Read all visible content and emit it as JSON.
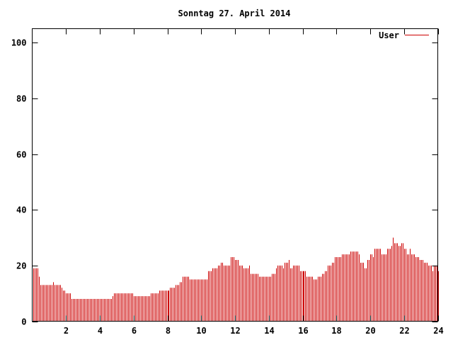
{
  "chart_data": {
    "type": "bar",
    "title": "Sonntag 27. April 2014",
    "xlabel": "",
    "ylabel": "",
    "xlim": [
      0,
      24
    ],
    "ylim": [
      0,
      105
    ],
    "x_ticks": [
      2,
      4,
      6,
      8,
      10,
      12,
      14,
      16,
      18,
      20,
      22,
      24
    ],
    "x_tick_labels": [
      "2",
      "4",
      "6",
      "8",
      "10",
      "12",
      "14",
      "16",
      "18",
      "20",
      "22",
      "24"
    ],
    "y_ticks": [
      0,
      20,
      40,
      60,
      80,
      100
    ],
    "y_tick_labels": [
      "0",
      "20",
      "40",
      "60",
      "80",
      "100"
    ],
    "grid": false,
    "legend_position": "top-right",
    "colors": {
      "series": "#cc0000",
      "axis": "#000000",
      "background": "#ffffff"
    },
    "series": [
      {
        "name": "User",
        "anchors": [
          [
            0.05,
            19
          ],
          [
            0.3,
            19
          ],
          [
            0.4,
            16
          ],
          [
            0.5,
            13
          ],
          [
            1.0,
            13
          ],
          [
            1.2,
            14
          ],
          [
            1.3,
            13
          ],
          [
            1.5,
            13
          ],
          [
            1.7,
            12
          ],
          [
            1.8,
            11
          ],
          [
            2.0,
            10
          ],
          [
            2.2,
            10
          ],
          [
            2.3,
            8
          ],
          [
            4.0,
            8
          ],
          [
            4.2,
            8
          ],
          [
            4.5,
            8
          ],
          [
            4.7,
            9
          ],
          [
            4.8,
            10
          ],
          [
            5.8,
            10
          ],
          [
            6.0,
            9
          ],
          [
            6.9,
            9
          ],
          [
            7.0,
            10
          ],
          [
            7.4,
            10
          ],
          [
            7.5,
            11
          ],
          [
            8.0,
            11
          ],
          [
            8.1,
            12
          ],
          [
            8.4,
            12
          ],
          [
            8.5,
            13
          ],
          [
            8.7,
            14
          ],
          [
            8.9,
            16
          ],
          [
            9.2,
            16
          ],
          [
            9.3,
            15
          ],
          [
            10.3,
            15
          ],
          [
            10.4,
            18
          ],
          [
            10.6,
            19
          ],
          [
            11.0,
            20
          ],
          [
            11.1,
            21
          ],
          [
            11.3,
            20
          ],
          [
            11.6,
            20
          ],
          [
            11.7,
            23
          ],
          [
            11.9,
            23
          ],
          [
            12.0,
            22
          ],
          [
            12.2,
            20
          ],
          [
            12.4,
            20
          ],
          [
            12.5,
            19
          ],
          [
            12.7,
            19
          ],
          [
            12.8,
            20
          ],
          [
            12.9,
            17
          ],
          [
            13.3,
            17
          ],
          [
            13.4,
            16
          ],
          [
            14.0,
            16
          ],
          [
            14.1,
            17
          ],
          [
            14.3,
            17
          ],
          [
            14.4,
            19
          ],
          [
            14.5,
            20
          ],
          [
            14.7,
            20
          ],
          [
            14.8,
            19
          ],
          [
            14.9,
            21
          ],
          [
            15.1,
            22
          ],
          [
            15.2,
            19
          ],
          [
            15.4,
            20
          ],
          [
            15.6,
            20
          ],
          [
            15.8,
            18
          ],
          [
            16.1,
            18
          ],
          [
            16.2,
            16
          ],
          [
            16.5,
            16
          ],
          [
            16.6,
            15
          ],
          [
            16.8,
            15
          ],
          [
            16.9,
            16
          ],
          [
            17.1,
            17
          ],
          [
            17.3,
            18
          ],
          [
            17.5,
            20
          ],
          [
            17.7,
            21
          ],
          [
            17.9,
            23
          ],
          [
            18.1,
            23
          ],
          [
            18.3,
            24
          ],
          [
            18.7,
            24
          ],
          [
            18.8,
            25
          ],
          [
            19.2,
            25
          ],
          [
            19.3,
            24
          ],
          [
            19.4,
            21
          ],
          [
            19.6,
            19
          ],
          [
            19.8,
            22
          ],
          [
            20.0,
            24
          ],
          [
            20.1,
            23
          ],
          [
            20.2,
            26
          ],
          [
            20.5,
            26
          ],
          [
            20.6,
            24
          ],
          [
            20.9,
            24
          ],
          [
            21.0,
            26
          ],
          [
            21.2,
            27
          ],
          [
            21.3,
            30
          ],
          [
            21.4,
            28
          ],
          [
            21.6,
            27
          ],
          [
            21.8,
            28
          ],
          [
            22.0,
            26
          ],
          [
            22.1,
            24
          ],
          [
            22.3,
            26
          ],
          [
            22.4,
            24
          ],
          [
            22.6,
            23
          ],
          [
            22.8,
            23
          ],
          [
            22.9,
            22
          ],
          [
            23.1,
            21
          ],
          [
            23.3,
            21
          ],
          [
            23.4,
            20
          ],
          [
            23.6,
            18
          ],
          [
            23.7,
            20
          ],
          [
            23.9,
            20
          ],
          [
            24.0,
            18
          ]
        ]
      }
    ]
  }
}
